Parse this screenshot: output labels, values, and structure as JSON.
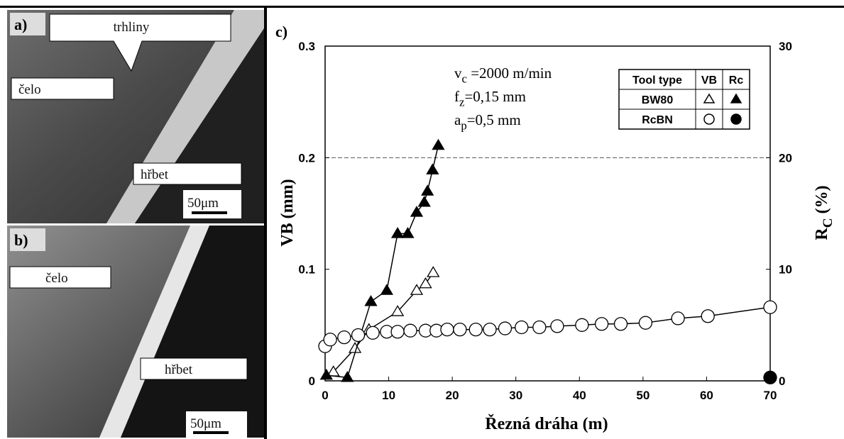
{
  "panels": [
    {
      "label": "a)",
      "texts": [
        "trhliny",
        "čelo",
        "hřbet"
      ],
      "scale": "50μm"
    },
    {
      "label": "b)",
      "texts": [
        "čelo",
        "hřbet"
      ],
      "scale": "50μm"
    }
  ],
  "chart_data": {
    "type": "scatter",
    "panel_label": "c)",
    "xlabel": "Řezná dráha (m)",
    "ylabel": "VB (mm)",
    "y2label": {
      "base": "R",
      "sub": "C",
      "rest": " (%)"
    },
    "xlim": [
      0,
      70
    ],
    "xticks": [
      0,
      10,
      20,
      30,
      40,
      50,
      60,
      70
    ],
    "ylim": [
      0,
      0.3
    ],
    "yticks": [
      0,
      0.1,
      0.2,
      0.3
    ],
    "y2lim": [
      0,
      30
    ],
    "y2ticks": [
      0,
      10,
      20,
      30
    ],
    "reference_line": 0.2,
    "annotations": [
      {
        "base": "v",
        "sub": "c",
        "rest": " =2000 m/min"
      },
      {
        "base": "f",
        "sub": "z",
        "rest": "=0,15 mm"
      },
      {
        "base": "a",
        "sub": "p",
        "rest": "=0,5 mm"
      }
    ],
    "legend_table": {
      "header": [
        "Tool type",
        "VB",
        "Rc"
      ]
    },
    "series": [
      {
        "name": "BW80",
        "marker": "open-triangle",
        "color": "#000000",
        "x": [
          1.3,
          4.7,
          6.9,
          11.4,
          14.4,
          15.8,
          17
        ],
        "values": [
          0.008,
          0.029,
          0.046,
          0.062,
          0.081,
          0.087,
          0.097
        ]
      },
      {
        "name": "BW80",
        "marker": "filled-triangle",
        "color": "#000000",
        "axis": "y2",
        "x": [
          0.2,
          3.5,
          7.2,
          9.7,
          11.4,
          13,
          14.4,
          15.6,
          16.1,
          16.9,
          17.8
        ],
        "values": [
          0.5,
          0.3,
          7.1,
          8.1,
          13.2,
          13.2,
          15.1,
          16,
          17,
          18.9,
          21.1
        ]
      },
      {
        "name": "RcBN",
        "marker": "open-circle",
        "color": "#000000",
        "x": [
          0,
          0.8,
          3,
          5.2,
          7.5,
          9.7,
          11.4,
          13.4,
          15.8,
          17.5,
          19.2,
          21.2,
          23.7,
          25.9,
          28.3,
          30.9,
          33.7,
          36.5,
          40.4,
          43.5,
          46.5,
          50.4,
          55.5,
          60.2,
          70
        ],
        "values": [
          0.031,
          0.037,
          0.039,
          0.041,
          0.043,
          0.044,
          0.044,
          0.045,
          0.045,
          0.045,
          0.046,
          0.046,
          0.046,
          0.046,
          0.047,
          0.048,
          0.048,
          0.049,
          0.05,
          0.051,
          0.051,
          0.052,
          0.056,
          0.058,
          0.066
        ]
      },
      {
        "name": "RcBN",
        "marker": "filled-circle",
        "color": "#000000",
        "axis": "y2",
        "x": [
          70
        ],
        "values": [
          0.3
        ]
      }
    ]
  }
}
